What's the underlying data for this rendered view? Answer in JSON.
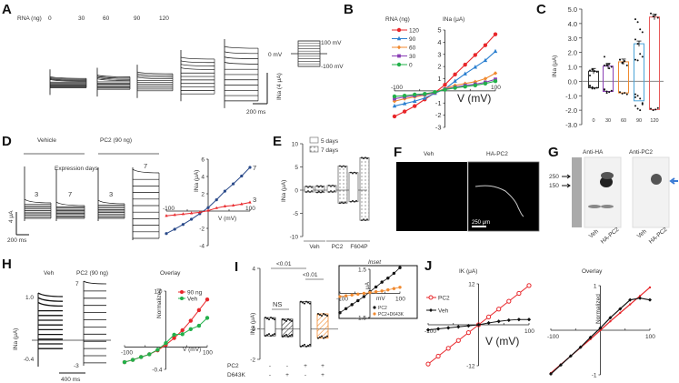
{
  "figure": {
    "panel_labels": [
      "A",
      "B",
      "C",
      "D",
      "E",
      "F",
      "G",
      "H",
      "I",
      "J"
    ]
  },
  "panelA": {
    "rna_label": "RNA (ng)",
    "doses": [
      "0",
      "30",
      "60",
      "90",
      "120"
    ],
    "scale_y": "INa (4 μA)",
    "scale_x": "200 ms",
    "protocol_top": "100 mV",
    "protocol_mid": "0 mV",
    "protocol_bottom": "-100 mV",
    "trace_peak_uA": [
      0.8,
      1.0,
      1.4,
      3.3,
      4.7
    ],
    "trace_min_uA": [
      -0.4,
      -0.6,
      -0.8,
      -1.2,
      -2.1
    ]
  },
  "chart_data": [
    {
      "panel": "B",
      "type": "line",
      "title": "",
      "legend_title": "RNA (ng)",
      "ylabel": "INa (μA)",
      "xlabel": "V (mV)",
      "xlim": [
        -100,
        100
      ],
      "ylim": [
        -3,
        5
      ],
      "x_ticks": [
        "-100",
        "100"
      ],
      "y_ticks": [
        "-3",
        "-2",
        "-1",
        "1",
        "2",
        "3",
        "4",
        "5"
      ],
      "legend_position": "top-left",
      "x": [
        -100,
        -80,
        -60,
        -40,
        -20,
        0,
        20,
        40,
        60,
        80,
        100
      ],
      "series": [
        {
          "name": "120",
          "color": "#e8262a",
          "marker": "circle",
          "values": [
            -2.1,
            -1.7,
            -1.25,
            -0.7,
            -0.15,
            0.5,
            1.35,
            2.15,
            2.95,
            3.75,
            4.65
          ]
        },
        {
          "name": "90",
          "color": "#2a7fd0",
          "marker": "triangle",
          "values": [
            -1.25,
            -1.05,
            -0.85,
            -0.6,
            -0.2,
            0.15,
            0.8,
            1.4,
            1.95,
            2.5,
            3.25
          ]
        },
        {
          "name": "60",
          "color": "#f08a30",
          "marker": "diamond",
          "values": [
            -0.85,
            -0.65,
            -0.5,
            -0.35,
            -0.15,
            0.2,
            0.45,
            0.6,
            0.75,
            1.0,
            1.45
          ]
        },
        {
          "name": "30",
          "color": "#8a3fb5",
          "marker": "square",
          "values": [
            -0.65,
            -0.5,
            -0.4,
            -0.3,
            -0.15,
            0.15,
            0.3,
            0.45,
            0.55,
            0.7,
            0.95
          ]
        },
        {
          "name": "0",
          "color": "#22b04a",
          "marker": "circle",
          "values": [
            -0.45,
            -0.4,
            -0.3,
            -0.25,
            -0.1,
            0.1,
            0.25,
            0.35,
            0.45,
            0.6,
            0.8
          ]
        }
      ]
    },
    {
      "panel": "C",
      "type": "bar",
      "ylabel": "INa (μA)",
      "ylim": [
        -3.0,
        5.0
      ],
      "y_ticks": [
        "5.0",
        "4.0",
        "3.0",
        "2.0",
        "1.0",
        "0.0",
        "-1.0",
        "-2.0",
        "-3.0"
      ],
      "categories": [
        "0",
        "30",
        "60",
        "90",
        "120"
      ],
      "colors": [
        "#333333",
        "#8a3fb5",
        "#f08a30",
        "#4aa3d8",
        "#e85a5a"
      ],
      "outward_mean": [
        0.7,
        1.05,
        1.35,
        2.6,
        4.45
      ],
      "inward_mean": [
        -0.45,
        -0.7,
        -0.8,
        -1.35,
        -1.95
      ],
      "outward_points": [
        [
          0.75,
          0.8,
          0.7,
          0.65,
          0.4,
          0.8,
          0.7
        ],
        [
          1.7,
          1.1,
          1.2,
          1.0,
          1.1,
          1.15,
          0.9
        ],
        [
          1.5,
          1.3,
          1.4,
          1.1,
          1.5,
          1.25
        ],
        [
          4.3,
          4.1,
          3.6,
          3.4,
          2.9,
          2.6,
          1.9,
          1.7,
          1.5,
          1.45
        ],
        [
          4.7,
          4.5,
          4.6,
          4.4
        ]
      ],
      "inward_points": [
        [
          -0.3,
          -0.4,
          -0.5,
          -0.45,
          -0.35,
          -0.5
        ],
        [
          -0.6,
          -0.7,
          -0.75,
          -0.65,
          -0.55,
          -0.8
        ],
        [
          -0.75,
          -0.85,
          -0.8,
          -0.9
        ],
        [
          -0.9,
          -1.0,
          -1.2,
          -1.5,
          -1.7,
          -1.9,
          -2.0,
          -1.6,
          -1.1
        ],
        [
          -1.9,
          -2.0,
          -1.95,
          -1.85
        ]
      ]
    },
    {
      "panel": "D",
      "type": "line",
      "ylabel": "INa (μA)",
      "xlabel": "V (mV)",
      "xlim": [
        -100,
        100
      ],
      "ylim": [
        -4,
        6
      ],
      "x_ticks": [
        "-100",
        "100"
      ],
      "y_ticks": [
        "6",
        "4",
        "2",
        "-2",
        "-4"
      ],
      "x": [
        -100,
        -80,
        -60,
        -40,
        -20,
        0,
        20,
        40,
        60,
        80,
        100
      ],
      "series": [
        {
          "name": "7",
          "color": "#2a4a8a",
          "marker": "circle",
          "values": [
            -2.6,
            -2.1,
            -1.55,
            -0.95,
            -0.3,
            0.4,
            1.3,
            2.3,
            3.15,
            4.05,
            5.05
          ]
        },
        {
          "name": "3",
          "color": "#e8262a",
          "marker": "triangle",
          "values": [
            -0.55,
            -0.45,
            -0.35,
            -0.25,
            -0.15,
            0.05,
            0.35,
            0.55,
            0.65,
            0.8,
            1.0
          ]
        }
      ]
    },
    {
      "panel": "E",
      "type": "bar",
      "ylabel": "INa (μA)",
      "ylim": [
        -10,
        10
      ],
      "y_ticks": [
        "10",
        "5",
        "0",
        "-5",
        "-10"
      ],
      "categories": [
        "Veh",
        "PC2",
        "F604P"
      ],
      "legend": [
        {
          "name": "5 days",
          "pattern": "open"
        },
        {
          "name": "7 days",
          "pattern": "dots"
        }
      ],
      "legend_position": "top-left",
      "groups": [
        {
          "category": "Veh",
          "day5": {
            "out": 0.8,
            "in": -0.4
          },
          "day7": {
            "out": 0.9,
            "in": -0.5
          }
        },
        {
          "category": "PC2",
          "day5": {
            "out": 1.0,
            "in": -0.4
          },
          "day7": {
            "out": 5.2,
            "in": -2.8
          }
        },
        {
          "category": "F604P",
          "day5": {
            "out": 3.8,
            "in": -2.5
          },
          "day7": {
            "out": 7.0,
            "in": -6.5
          }
        }
      ]
    },
    {
      "panel": "H-overlay",
      "type": "line",
      "title": "Overlay",
      "ylabel": "Normalized",
      "xlabel": "V (mV)",
      "xlim": [
        -100,
        100
      ],
      "ylim": [
        -0.4,
        1.0
      ],
      "x_ticks": [
        "-100",
        "100"
      ],
      "y_ticks": [
        "1.0",
        "-0.4"
      ],
      "x": [
        -100,
        -80,
        -60,
        -40,
        -20,
        0,
        20,
        40,
        60,
        80,
        100
      ],
      "series": [
        {
          "name": "90 ng",
          "color": "#e8262a",
          "marker": "circle",
          "values": [
            -0.27,
            -0.23,
            -0.18,
            -0.13,
            -0.06,
            0.04,
            0.16,
            0.3,
            0.47,
            0.66,
            0.85
          ]
        },
        {
          "name": "Veh",
          "color": "#22b04a",
          "marker": "circle",
          "values": [
            -0.27,
            -0.23,
            -0.18,
            -0.13,
            -0.05,
            0.07,
            0.22,
            0.23,
            0.32,
            0.38,
            0.52
          ]
        }
      ]
    },
    {
      "panel": "I",
      "type": "bar",
      "ylabel": "INa (μA)",
      "ylim": [
        -2,
        4
      ],
      "y_ticks": [
        "4",
        "0",
        "-2"
      ],
      "row_labels": [
        "PC2",
        "D643K"
      ],
      "conditions": [
        {
          "PC2": "-",
          "D643K": "-",
          "out": 0.75,
          "in": -0.45,
          "pattern": "open",
          "color": "#333333"
        },
        {
          "PC2": "-",
          "D643K": "+",
          "out": 0.65,
          "in": -0.5,
          "pattern": "hatch",
          "color": "#333333"
        },
        {
          "PC2": "+",
          "D643K": "-",
          "out": 1.8,
          "in": -1.15,
          "pattern": "open",
          "color": "#333333"
        },
        {
          "PC2": "+",
          "D643K": "+",
          "out": 1.0,
          "in": -0.6,
          "pattern": "hatch",
          "color": "#f08a30"
        }
      ],
      "significance": [
        {
          "label": "NS",
          "between": [
            1,
            2
          ]
        },
        {
          "label": "<0.01",
          "between": [
            1,
            3
          ]
        },
        {
          "label": "<0.01",
          "between": [
            3,
            4
          ]
        }
      ]
    },
    {
      "panel": "I-inset",
      "type": "line",
      "title": "Inset",
      "ylabel": "μA",
      "xlabel": "mV",
      "xlim": [
        -100,
        100
      ],
      "ylim": [
        -1.5,
        1.5
      ],
      "x_ticks": [
        "-100",
        "100"
      ],
      "y_ticks": [
        "1.5",
        "-1.5"
      ],
      "legend_position": "bottom-right",
      "x": [
        -100,
        -80,
        -60,
        -40,
        -20,
        0,
        20,
        40,
        60,
        80,
        100
      ],
      "series": [
        {
          "name": "PC2",
          "color": "#111111",
          "marker": "circle",
          "values": [
            -1.2,
            -0.95,
            -0.7,
            -0.45,
            -0.2,
            0.1,
            0.4,
            0.7,
            0.95,
            1.25,
            1.6
          ]
        },
        {
          "name": "PC2+D643K",
          "color": "#f08a30",
          "marker": "circle",
          "values": [
            -0.2,
            -0.15,
            -0.1,
            -0.05,
            0.0,
            0.05,
            0.1,
            0.15,
            0.22,
            0.3,
            0.38
          ]
        }
      ]
    },
    {
      "panel": "J",
      "type": "line",
      "title": "",
      "ylabel": "IK (μA)",
      "xlabel": "V (mV)",
      "xlim": [
        -100,
        100
      ],
      "ylim": [
        -12,
        12
      ],
      "x_ticks": [
        "-100",
        "100"
      ],
      "y_ticks": [
        "12",
        "-12"
      ],
      "legend_position": "top-left",
      "x": [
        -100,
        -80,
        -60,
        -40,
        -20,
        0,
        20,
        40,
        60,
        80,
        100
      ],
      "series": [
        {
          "name": "PC2",
          "color": "#e8262a",
          "marker": "open-circle",
          "values": [
            -11.5,
            -9.2,
            -6.9,
            -4.6,
            -2.3,
            0.0,
            2.3,
            4.6,
            6.9,
            9.2,
            11.5
          ]
        },
        {
          "name": "Veh",
          "color": "#111111",
          "marker": "open-diamond",
          "values": [
            -1.5,
            -1.2,
            -0.9,
            -0.6,
            -0.3,
            0.0,
            0.55,
            1.0,
            1.35,
            1.55,
            1.55
          ]
        }
      ]
    },
    {
      "panel": "J-overlay",
      "type": "line",
      "title": "Overlay",
      "ylabel": "Normalized",
      "xlabel": "",
      "xlim": [
        -100,
        100
      ],
      "ylim": [
        -1,
        1
      ],
      "x_ticks": [
        "-100",
        "100"
      ],
      "y_ticks": [
        "1",
        "-1"
      ],
      "x": [
        -100,
        -80,
        -60,
        -40,
        -20,
        0,
        20,
        40,
        60,
        80,
        100
      ],
      "series": [
        {
          "name": "PC2",
          "color": "#e8262a",
          "marker": "dot",
          "values": [
            -0.96,
            -0.77,
            -0.58,
            -0.39,
            -0.2,
            0.0,
            0.2,
            0.39,
            0.58,
            0.77,
            0.96
          ]
        },
        {
          "name": "Veh",
          "color": "#111111",
          "marker": "diamond",
          "values": [
            -0.98,
            -0.78,
            -0.58,
            -0.38,
            -0.16,
            0.05,
            0.28,
            0.48,
            0.68,
            0.72,
            0.68
          ]
        }
      ]
    }
  ],
  "panelD": {
    "vehicle_label": "Vehicle",
    "pc2_label": "PC2 (90 ng)",
    "expression_label": "Expression days",
    "trace_days": [
      "3",
      "7",
      "3",
      "7"
    ],
    "scale_y": "4 μA",
    "scale_x": "200 ms"
  },
  "panelF": {
    "veh_label": "Veh",
    "hapc2_label": "HA-PC2",
    "scale_label": "250 μm"
  },
  "panelG": {
    "anti_ha": "Anti-HA",
    "anti_pc2": "Anti-PC2",
    "markers": [
      "250",
      "150"
    ],
    "lanes": [
      "Veh",
      "HA-PC2"
    ],
    "arrow_color": "#3a7bd5"
  },
  "panelH": {
    "veh_label": "Veh",
    "pc2_label": "PC2 (90 ng)",
    "veh_ticks": [
      "1.0",
      "-0.4"
    ],
    "pc2_ticks": [
      "7",
      "-3"
    ],
    "ylabel": "INa (μA)",
    "scale_x": "400 ms"
  }
}
